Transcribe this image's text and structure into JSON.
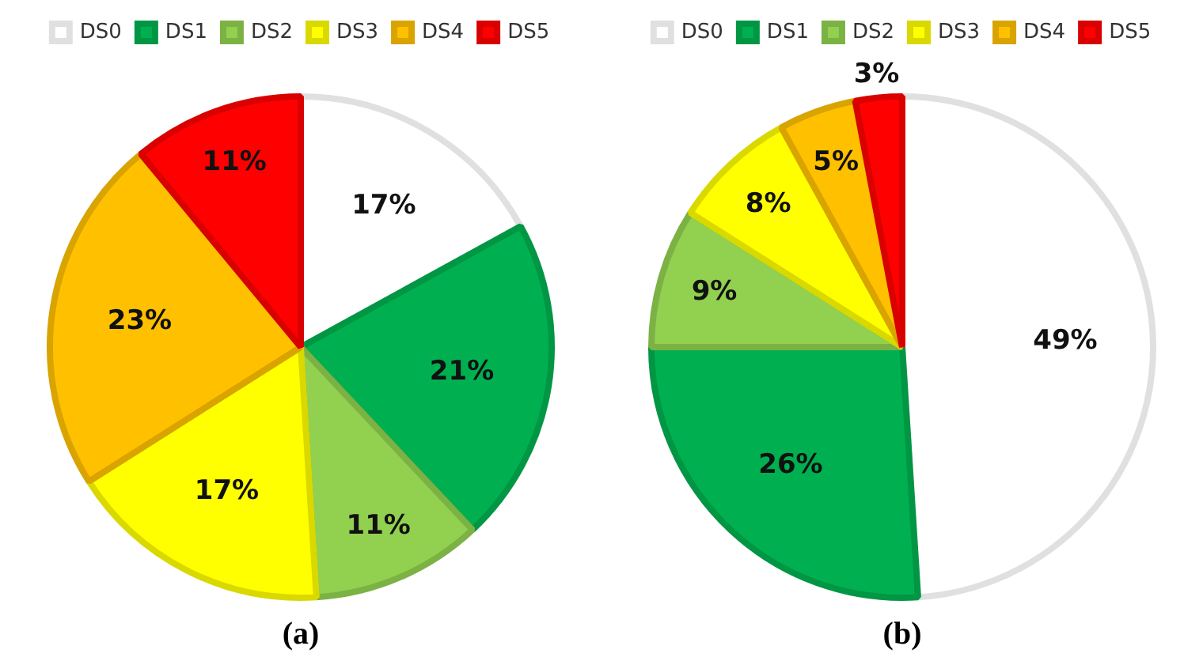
{
  "chart_data": [
    {
      "type": "pie",
      "title": "(a)",
      "categories": [
        "DS0",
        "DS1",
        "DS2",
        "DS3",
        "DS4",
        "DS5"
      ],
      "values": [
        17,
        21,
        11,
        17,
        23,
        11
      ],
      "colors": [
        "#ffffff",
        "#00b050",
        "#92d050",
        "#ffff00",
        "#ffc000",
        "#ff0000"
      ],
      "value_labels": [
        "17%",
        "21%",
        "11%",
        "17%",
        "23%",
        "11%"
      ],
      "legend": "top"
    },
    {
      "type": "pie",
      "title": "(b)",
      "categories": [
        "DS0",
        "DS1",
        "DS2",
        "DS3",
        "DS4",
        "DS5"
      ],
      "values": [
        49,
        26,
        9,
        8,
        5,
        3
      ],
      "colors": [
        "#ffffff",
        "#00b050",
        "#92d050",
        "#ffff00",
        "#ffc000",
        "#ff0000"
      ],
      "value_labels": [
        "49%",
        "26%",
        "9%",
        "8%",
        "5%",
        "3%"
      ],
      "legend": "top"
    }
  ]
}
